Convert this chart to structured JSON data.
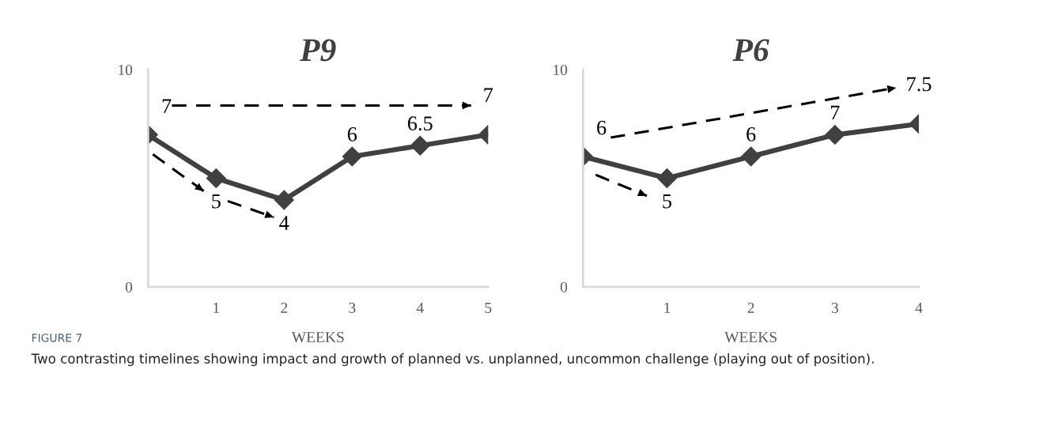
{
  "chart_data": [
    {
      "type": "line",
      "title": "P9",
      "xlabel": "WEEKS",
      "xlim": [
        0,
        5
      ],
      "xticks": [
        1,
        2,
        3,
        4,
        5
      ],
      "ylim": [
        0,
        10
      ],
      "yticks": [
        0,
        10
      ],
      "marker": "diamond",
      "line_style": "solid",
      "annotations": [
        "FIGURE 7",
        "Two contrasting timelines showing impact and growth of planned vs. unplanned, uncommon challenge (playing out of position)."
      ],
      "series": [
        {
          "color": "#404040",
          "x": [
            0,
            1,
            2,
            3,
            4,
            5
          ],
          "values": [
            7,
            5,
            4,
            6,
            6.5,
            7
          ],
          "value_labels": [
            "7",
            "5",
            "4",
            "6",
            "6.5",
            "7"
          ]
        },
        {
          "type": "line",
          "color": "#000000",
          "line_style": "dashed",
          "marker": "none",
          "x": [
            0.35,
            4.75
          ],
          "values": [
            8.35,
            8.35
          ]
        },
        {
          "type": "line",
          "color": "#000000",
          "line_style": "dashed",
          "marker": "none",
          "x": [
            0.07,
            0.82
          ],
          "values": [
            6.1,
            4.4
          ]
        },
        {
          "type": "line",
          "color": "#000000",
          "line_style": "dashed",
          "marker": "none",
          "x": [
            1.17,
            1.85
          ],
          "values": [
            3.95,
            3.2
          ]
        }
      ]
    },
    {
      "type": "line",
      "title": "P6",
      "xlabel": "WEEKS",
      "xlim": [
        0,
        4
      ],
      "xticks": [
        1,
        2,
        3,
        4
      ],
      "ylim": [
        0,
        10
      ],
      "yticks": [
        0,
        10
      ],
      "marker": "diamond",
      "line_style": "solid",
      "series": [
        {
          "color": "#404040",
          "x": [
            0,
            1,
            2,
            3,
            4
          ],
          "values": [
            6,
            5,
            6,
            7,
            7.5
          ],
          "value_labels": [
            "6",
            "5",
            "6",
            "7",
            "7.5"
          ]
        },
        {
          "type": "line",
          "color": "#000000",
          "line_style": "dashed",
          "marker": "none",
          "x": [
            0.33,
            3.73
          ],
          "values": [
            6.87,
            9.17
          ]
        },
        {
          "type": "line",
          "color": "#000000",
          "line_style": "dashed",
          "marker": "none",
          "x": [
            0.15,
            0.76
          ],
          "values": [
            5.16,
            4.19
          ]
        }
      ]
    }
  ]
}
